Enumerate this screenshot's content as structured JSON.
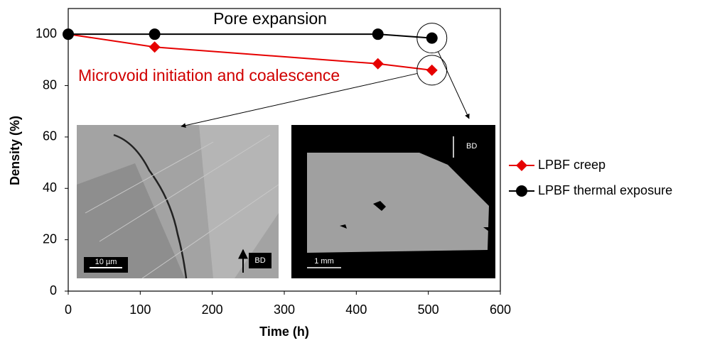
{
  "chart_data": {
    "type": "line",
    "x_label": "Time (h)",
    "y_label": "Density (%)",
    "x": [
      0,
      120,
      430,
      505
    ],
    "series": [
      {
        "name": "LPBF creep",
        "color": "#e60000",
        "marker": "diamond",
        "values": [
          100,
          95,
          88.5,
          86
        ]
      },
      {
        "name": "LPBF thermal exposure",
        "color": "#000000",
        "marker": "circle",
        "values": [
          100,
          100,
          100,
          98.5
        ]
      }
    ],
    "xlim": [
      0,
      600
    ],
    "xticks": [
      0,
      100,
      200,
      300,
      400,
      500,
      600
    ],
    "ylim": [
      0,
      110
    ],
    "yticks": [
      0,
      20,
      40,
      60,
      80,
      100
    ],
    "grid": false,
    "legend": "right",
    "annotations": [
      "Pore expansion",
      "Microvoid initiation and coalescence"
    ],
    "insets": [
      {
        "scale_bar": "10 µm",
        "direction": "BD"
      },
      {
        "scale_bar": "1 mm",
        "direction": "BD"
      }
    ]
  }
}
